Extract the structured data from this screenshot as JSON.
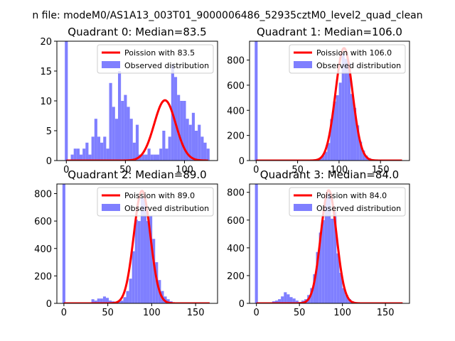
{
  "figure_title": "n file: modeM0/AS1A13_003T01_9000006486_52935cztM0_level2_quad_clean",
  "colors": {
    "hist": "#7f7fff",
    "fit": "#ff0000",
    "axis": "#000000"
  },
  "chart_data": [
    {
      "type": "bar",
      "title": "Quadrant 0: Median=83.5",
      "legend": [
        "Poission with 83.5",
        "Observed distribution"
      ],
      "legend_position": "top-right",
      "xlim": [
        -8,
        128
      ],
      "ylim": [
        0,
        20
      ],
      "xticks": [
        0,
        50,
        100
      ],
      "yticks": [
        0,
        5,
        10,
        15,
        20
      ],
      "fit": {
        "label": "Poission with 83.5",
        "mean": 83.5,
        "peak": 10.1,
        "x_range": [
          0,
          120
        ]
      },
      "hist": {
        "bin_width": 2.5,
        "spike": {
          "x": 0,
          "value": 20
        },
        "bins": [
          [
            5,
            1
          ],
          [
            7.5,
            2
          ],
          [
            10,
            2
          ],
          [
            12.5,
            1
          ],
          [
            15,
            2
          ],
          [
            17.5,
            3
          ],
          [
            20,
            1
          ],
          [
            22.5,
            4
          ],
          [
            25,
            7
          ],
          [
            27.5,
            4
          ],
          [
            30,
            3
          ],
          [
            32.5,
            4
          ],
          [
            35,
            2
          ],
          [
            37.5,
            13
          ],
          [
            40,
            9
          ],
          [
            42.5,
            7
          ],
          [
            45,
            15
          ],
          [
            47.5,
            10
          ],
          [
            50,
            11
          ],
          [
            52.5,
            9
          ],
          [
            55,
            7
          ],
          [
            57.5,
            3
          ],
          [
            60,
            6
          ],
          [
            62.5,
            1
          ],
          [
            65,
            1
          ],
          [
            67.5,
            1
          ],
          [
            70,
            2
          ],
          [
            72.5,
            1
          ],
          [
            75,
            1
          ],
          [
            77.5,
            1
          ],
          [
            80,
            2
          ],
          [
            82.5,
            5
          ],
          [
            85,
            2
          ],
          [
            87.5,
            4
          ],
          [
            90,
            16
          ],
          [
            92.5,
            14
          ],
          [
            95,
            11
          ],
          [
            97.5,
            10
          ],
          [
            100,
            10
          ],
          [
            102.5,
            7
          ],
          [
            105,
            6
          ],
          [
            107.5,
            8
          ],
          [
            110,
            5
          ],
          [
            112.5,
            6
          ],
          [
            115,
            4
          ],
          [
            117.5,
            3
          ],
          [
            120,
            2
          ]
        ]
      }
    },
    {
      "type": "bar",
      "title": "Quadrant 1: Median=106.0",
      "legend": [
        "Poission with 106.0",
        "Observed distribution"
      ],
      "legend_position": "top-right",
      "xlim": [
        -8,
        185
      ],
      "ylim": [
        0,
        950
      ],
      "xticks": [
        0,
        50,
        100,
        150
      ],
      "yticks": [
        0,
        200,
        400,
        600,
        800
      ],
      "fit": {
        "label": "Poission with 106.0",
        "mean": 106,
        "peak": 895,
        "x_range": [
          0,
          176
        ]
      },
      "hist": {
        "bin_width": 3.5,
        "spike": {
          "x": 0,
          "value": 950
        },
        "bins": [
          [
            70,
            5
          ],
          [
            73.5,
            10
          ],
          [
            77,
            20
          ],
          [
            80.5,
            40
          ],
          [
            84,
            70
          ],
          [
            87.5,
            140
          ],
          [
            91,
            330
          ],
          [
            94.5,
            470
          ],
          [
            98,
            520
          ],
          [
            101.5,
            620
          ],
          [
            105,
            850
          ],
          [
            108.5,
            810
          ],
          [
            112,
            780
          ],
          [
            115.5,
            530
          ],
          [
            119,
            420
          ],
          [
            122.5,
            280
          ],
          [
            126,
            150
          ],
          [
            129.5,
            80
          ],
          [
            133,
            40
          ],
          [
            136.5,
            20
          ],
          [
            140,
            10
          ],
          [
            143.5,
            5
          ]
        ]
      }
    },
    {
      "type": "bar",
      "title": "Quadrant 2: Median=89.0",
      "legend": [
        "Poission with 89.0",
        "Observed distribution"
      ],
      "legend_position": "top-right",
      "xlim": [
        -8,
        175
      ],
      "ylim": [
        0,
        870
      ],
      "xticks": [
        0,
        50,
        100,
        150
      ],
      "yticks": [
        0,
        200,
        400,
        600,
        800
      ],
      "fit": {
        "label": "Poission with 89.0",
        "mean": 89,
        "peak": 820,
        "x_range": [
          0,
          166
        ]
      },
      "hist": {
        "bin_width": 3.3,
        "spike": {
          "x": 0,
          "value": 870
        },
        "bins": [
          [
            33,
            30
          ],
          [
            36.3,
            20
          ],
          [
            39.6,
            35
          ],
          [
            42.9,
            35
          ],
          [
            46.2,
            50
          ],
          [
            49.5,
            40
          ],
          [
            52.8,
            20
          ],
          [
            56.1,
            15
          ],
          [
            59.4,
            10
          ],
          [
            62.7,
            15
          ],
          [
            66,
            20
          ],
          [
            69.3,
            45
          ],
          [
            72.6,
            90
          ],
          [
            75.9,
            180
          ],
          [
            79.2,
            380
          ],
          [
            82.5,
            610
          ],
          [
            85.8,
            600
          ],
          [
            89.1,
            770
          ],
          [
            92.4,
            760
          ],
          [
            95.7,
            600
          ],
          [
            99,
            640
          ],
          [
            102.3,
            470
          ],
          [
            105.6,
            300
          ],
          [
            108.9,
            170
          ],
          [
            112.2,
            90
          ],
          [
            115.5,
            50
          ],
          [
            118.8,
            30
          ],
          [
            122.1,
            15
          ],
          [
            125.4,
            5
          ]
        ]
      }
    },
    {
      "type": "bar",
      "title": "Quadrant 3: Median=84.0",
      "legend": [
        "Poission with 84.0",
        "Observed distribution"
      ],
      "legend_position": "top-right",
      "xlim": [
        -8,
        178
      ],
      "ylim": [
        0,
        860
      ],
      "xticks": [
        0,
        50,
        100,
        150
      ],
      "yticks": [
        0,
        200,
        400,
        600,
        800
      ],
      "fit": {
        "label": "Poission with 84.0",
        "mean": 84,
        "peak": 815,
        "x_range": [
          0,
          170
        ]
      },
      "hist": {
        "bin_width": 3.4,
        "spike": {
          "x": 0,
          "value": 860
        },
        "bins": [
          [
            20,
            15
          ],
          [
            23.4,
            20
          ],
          [
            26.8,
            30
          ],
          [
            30.2,
            50
          ],
          [
            33.6,
            80
          ],
          [
            37,
            65
          ],
          [
            40.4,
            45
          ],
          [
            43.8,
            35
          ],
          [
            47.2,
            20
          ],
          [
            50.6,
            10
          ],
          [
            54,
            20
          ],
          [
            57.4,
            30
          ],
          [
            60.8,
            60
          ],
          [
            64.2,
            110
          ],
          [
            67.6,
            210
          ],
          [
            71,
            370
          ],
          [
            74.4,
            510
          ],
          [
            77.8,
            600
          ],
          [
            81.2,
            760
          ],
          [
            84.6,
            790
          ],
          [
            88,
            610
          ],
          [
            91.4,
            660
          ],
          [
            94.8,
            360
          ],
          [
            98.2,
            220
          ],
          [
            101.6,
            110
          ],
          [
            105,
            60
          ],
          [
            108.4,
            30
          ],
          [
            111.8,
            15
          ],
          [
            115.2,
            8
          ]
        ]
      }
    }
  ]
}
